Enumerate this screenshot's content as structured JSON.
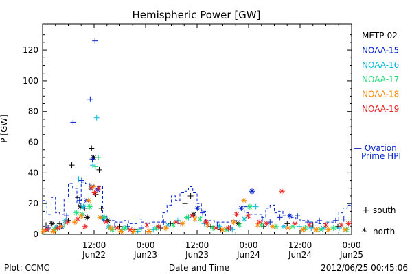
{
  "chart_data": {
    "type": "scatter",
    "title": "Hemispheric Power [GW]",
    "ylabel": "P [GW]",
    "xlabel": "Date and Time",
    "ylim": [
      0,
      137
    ],
    "yticks": [
      0,
      20,
      40,
      60,
      80,
      100,
      120
    ],
    "xlim": [
      -24.0,
      48.0
    ],
    "xticks": [
      {
        "t": -12,
        "l1": "12:00",
        "l2": "Jun22"
      },
      {
        "t": 0,
        "l1": "0:00",
        "l2": "Jun23"
      },
      {
        "t": 12,
        "l1": "12:00",
        "l2": "Jun23"
      },
      {
        "t": 24,
        "l1": "0:00",
        "l2": "Jun24"
      },
      {
        "t": 36,
        "l1": "12:00",
        "l2": "Jun24"
      },
      {
        "t": 48,
        "l1": "0:00",
        "l2": "Jun25"
      }
    ],
    "series": [
      {
        "name": "METP-02",
        "color": "#000000",
        "points": [
          [
            -23.2,
            6,
            "+"
          ],
          [
            -21.8,
            7,
            "*"
          ],
          [
            -20.0,
            7,
            "+"
          ],
          [
            -18.0,
            9,
            "+"
          ],
          [
            -17.2,
            45,
            "+"
          ],
          [
            -15.8,
            24,
            "+"
          ],
          [
            -15.2,
            18,
            "*"
          ],
          [
            -14.2,
            17,
            "+"
          ],
          [
            -13.6,
            11,
            "*"
          ],
          [
            -12.6,
            56,
            "+"
          ],
          [
            -12.1,
            50,
            "*"
          ],
          [
            -11.6,
            26,
            "+"
          ],
          [
            -10.8,
            42,
            "+"
          ],
          [
            -10.3,
            17,
            "+"
          ],
          [
            -8.8,
            9,
            "*"
          ],
          [
            -6.0,
            5,
            "+"
          ],
          [
            -2.5,
            3,
            "+"
          ],
          [
            3.5,
            4,
            "+"
          ],
          [
            5.8,
            7,
            "+"
          ],
          [
            9.2,
            20,
            "+"
          ],
          [
            10.5,
            25,
            "+"
          ],
          [
            11.2,
            13,
            "*"
          ],
          [
            15.2,
            5,
            "+"
          ],
          [
            17.5,
            3,
            "+"
          ],
          [
            21.6,
            7,
            "*"
          ],
          [
            27.5,
            5,
            "+"
          ],
          [
            33.0,
            7,
            "+"
          ],
          [
            39.0,
            6,
            "+"
          ],
          [
            44.8,
            5,
            "+"
          ]
        ]
      },
      {
        "name": "NOAA-15",
        "color": "#0022cc",
        "points": [
          [
            -22.7,
            4,
            "+"
          ],
          [
            -19.6,
            5,
            "*"
          ],
          [
            -18.4,
            12,
            "+"
          ],
          [
            -16.9,
            73,
            "+"
          ],
          [
            -15.4,
            22,
            "+"
          ],
          [
            -14.9,
            35,
            "+"
          ],
          [
            -13.7,
            22,
            "*"
          ],
          [
            -12.9,
            88,
            "+"
          ],
          [
            -12.4,
            49,
            "+"
          ],
          [
            -11.8,
            126,
            "+"
          ],
          [
            -11.2,
            29,
            "*"
          ],
          [
            -9.8,
            10,
            "*"
          ],
          [
            -7.2,
            6,
            "+"
          ],
          [
            -4.2,
            5,
            "+"
          ],
          [
            -1.0,
            4,
            "+"
          ],
          [
            4.2,
            8,
            "+"
          ],
          [
            8.2,
            7,
            "+"
          ],
          [
            12.1,
            17,
            "*"
          ],
          [
            13.3,
            14,
            "+"
          ],
          [
            16.7,
            6,
            "+"
          ],
          [
            19.8,
            4,
            "+"
          ],
          [
            22.3,
            17,
            "*"
          ],
          [
            23.6,
            18,
            "+"
          ],
          [
            24.8,
            28,
            "*"
          ],
          [
            27.2,
            10,
            "+"
          ],
          [
            29.0,
            8,
            "+"
          ],
          [
            31.3,
            11,
            "+"
          ],
          [
            33.6,
            12,
            "*"
          ],
          [
            35.4,
            12,
            "+"
          ],
          [
            37.8,
            8,
            "+"
          ],
          [
            40.5,
            9,
            "+"
          ],
          [
            44.3,
            9,
            "+"
          ],
          [
            46.2,
            10,
            "+"
          ]
        ]
      },
      {
        "name": "NOAA-16",
        "color": "#00bbdd",
        "points": [
          [
            -22.9,
            3,
            "+"
          ],
          [
            -20.8,
            5,
            "*"
          ],
          [
            -18.7,
            9,
            "*"
          ],
          [
            -15.6,
            36,
            "+"
          ],
          [
            -14.5,
            18,
            "*"
          ],
          [
            -12.8,
            30,
            "*"
          ],
          [
            -12.3,
            45,
            "+"
          ],
          [
            -11.4,
            76,
            "+"
          ],
          [
            -10.2,
            11,
            "*"
          ],
          [
            -8.6,
            5,
            "*"
          ],
          [
            -5.4,
            3,
            "+"
          ],
          [
            -1.8,
            2,
            "+"
          ],
          [
            1.8,
            3,
            "+"
          ],
          [
            5.2,
            6,
            "*"
          ],
          [
            7.5,
            9,
            "+"
          ],
          [
            10.0,
            11,
            "+"
          ],
          [
            13.7,
            7,
            "+"
          ],
          [
            17.2,
            5,
            "*"
          ],
          [
            20.2,
            3,
            "+"
          ],
          [
            23.0,
            10,
            "*"
          ],
          [
            25.7,
            18,
            "+"
          ],
          [
            28.6,
            6,
            "+"
          ],
          [
            32.2,
            5,
            "*"
          ],
          [
            35.8,
            5,
            "+"
          ],
          [
            38.6,
            4,
            "+"
          ],
          [
            41.4,
            4,
            "*"
          ],
          [
            45.1,
            4,
            "+"
          ]
        ]
      },
      {
        "name": "NOAA-17",
        "color": "#22dd77",
        "points": [
          [
            -23.5,
            2,
            "+"
          ],
          [
            -21.2,
            3,
            "*"
          ],
          [
            -19.0,
            6,
            "+"
          ],
          [
            -16.1,
            14,
            "*"
          ],
          [
            -14.7,
            13,
            "*"
          ],
          [
            -13.0,
            18,
            "*"
          ],
          [
            -11.7,
            44,
            "+"
          ],
          [
            -11.0,
            50,
            "+"
          ],
          [
            -9.6,
            11,
            "*"
          ],
          [
            -7.8,
            3,
            "*"
          ],
          [
            -4.8,
            4,
            "*"
          ],
          [
            -1.5,
            3,
            "+"
          ],
          [
            2.5,
            4,
            "*"
          ],
          [
            6.5,
            6,
            "*"
          ],
          [
            9.6,
            11,
            "*"
          ],
          [
            12.7,
            10,
            "*"
          ],
          [
            15.7,
            4,
            "*"
          ],
          [
            18.9,
            3,
            "*"
          ],
          [
            21.9,
            6,
            "*"
          ],
          [
            24.3,
            18,
            "*"
          ],
          [
            27.0,
            6,
            "*"
          ],
          [
            30.4,
            5,
            "*"
          ],
          [
            34.3,
            5,
            "*"
          ],
          [
            37.2,
            4,
            "*"
          ],
          [
            40.9,
            3,
            "*"
          ],
          [
            43.8,
            4,
            "*"
          ],
          [
            46.8,
            3,
            "*"
          ]
        ]
      },
      {
        "name": "NOAA-18",
        "color": "#ff8800",
        "points": [
          [
            -23.8,
            2,
            "*"
          ],
          [
            -21.5,
            2,
            "*"
          ],
          [
            -19.8,
            5,
            "*"
          ],
          [
            -16.5,
            8,
            "*"
          ],
          [
            -15.0,
            12,
            "*"
          ],
          [
            -13.3,
            22,
            "*"
          ],
          [
            -12.2,
            31,
            "*"
          ],
          [
            -10.6,
            11,
            "*"
          ],
          [
            -8.2,
            4,
            "*"
          ],
          [
            -5.7,
            2,
            "*"
          ],
          [
            -2.8,
            2,
            "*"
          ],
          [
            0.8,
            2,
            "*"
          ],
          [
            4.8,
            4,
            "*"
          ],
          [
            8.6,
            7,
            "*"
          ],
          [
            11.5,
            10,
            "*"
          ],
          [
            14.5,
            6,
            "*"
          ],
          [
            17.9,
            3,
            "*"
          ],
          [
            20.6,
            8,
            "*"
          ],
          [
            22.9,
            22,
            "*"
          ],
          [
            26.1,
            6,
            "*"
          ],
          [
            29.6,
            5,
            "*"
          ],
          [
            33.2,
            4,
            "*"
          ],
          [
            36.7,
            3,
            "*"
          ],
          [
            39.8,
            3,
            "*"
          ],
          [
            42.6,
            3,
            "*"
          ],
          [
            46.5,
            3,
            "*"
          ]
        ]
      },
      {
        "name": "NOAA-19",
        "color": "#ee2222",
        "points": [
          [
            -23.0,
            3,
            "*"
          ],
          [
            -20.5,
            4,
            "*"
          ],
          [
            -18.2,
            8,
            "*"
          ],
          [
            -15.8,
            10,
            "*"
          ],
          [
            -14.1,
            5,
            "*"
          ],
          [
            -12.7,
            30,
            "*"
          ],
          [
            -11.9,
            27,
            "*"
          ],
          [
            -10.9,
            30,
            "*"
          ],
          [
            -9.2,
            8,
            "*"
          ],
          [
            -6.6,
            4,
            "*"
          ],
          [
            -3.6,
            3,
            "*"
          ],
          [
            0.3,
            6,
            "*"
          ],
          [
            3.0,
            5,
            "*"
          ],
          [
            7.1,
            8,
            "*"
          ],
          [
            10.8,
            12,
            "*"
          ],
          [
            14.1,
            8,
            "*"
          ],
          [
            16.4,
            4,
            "*"
          ],
          [
            19.3,
            4,
            "*"
          ],
          [
            21.2,
            13,
            "*"
          ],
          [
            23.9,
            12,
            "*"
          ],
          [
            26.6,
            8,
            "*"
          ],
          [
            28.2,
            7,
            "*"
          ],
          [
            31.8,
            28,
            "*"
          ],
          [
            34.8,
            7,
            "*"
          ],
          [
            38.2,
            6,
            "*"
          ],
          [
            42.0,
            6,
            "*"
          ],
          [
            45.6,
            6,
            "*"
          ],
          [
            47.3,
            7,
            "*"
          ]
        ]
      }
    ],
    "ovation": {
      "label_line1": "— Ovation",
      "label_line2": "Prime HPI",
      "color": "#0022cc",
      "steps": [
        [
          -24.0,
          22
        ],
        [
          -23.0,
          13
        ],
        [
          -22.0,
          24
        ],
        [
          -21.0,
          14
        ],
        [
          -20.0,
          13
        ],
        [
          -19.0,
          23
        ],
        [
          -18.0,
          33
        ],
        [
          -17.0,
          30
        ],
        [
          -16.0,
          20
        ],
        [
          -15.0,
          34
        ],
        [
          -14.0,
          33
        ],
        [
          -13.0,
          32
        ],
        [
          -12.0,
          30
        ],
        [
          -11.0,
          31
        ],
        [
          -10.0,
          12
        ],
        [
          -9.0,
          10
        ],
        [
          -8.0,
          9
        ],
        [
          -7.0,
          8
        ],
        [
          -6.0,
          8
        ],
        [
          -5.0,
          9
        ],
        [
          -4.0,
          7
        ],
        [
          -3.0,
          7
        ],
        [
          -2.0,
          10
        ],
        [
          -1.0,
          8
        ],
        [
          0.0,
          7
        ],
        [
          1.0,
          8
        ],
        [
          2.0,
          8
        ],
        [
          3.0,
          8
        ],
        [
          4.0,
          14
        ],
        [
          5.0,
          19
        ],
        [
          6.0,
          25
        ],
        [
          7.0,
          22
        ],
        [
          8.0,
          27
        ],
        [
          9.0,
          28
        ],
        [
          10.0,
          31
        ],
        [
          11.0,
          27
        ],
        [
          12.0,
          20
        ],
        [
          13.0,
          15
        ],
        [
          14.0,
          9
        ],
        [
          15.0,
          9
        ],
        [
          16.0,
          8
        ],
        [
          17.0,
          8
        ],
        [
          18.0,
          8
        ],
        [
          19.0,
          8
        ],
        [
          20.0,
          9
        ],
        [
          21.0,
          9
        ],
        [
          22.0,
          17
        ],
        [
          23.0,
          14
        ],
        [
          24.0,
          13
        ],
        [
          25.0,
          13
        ],
        [
          26.0,
          13
        ],
        [
          27.0,
          11
        ],
        [
          28.0,
          17
        ],
        [
          29.0,
          19
        ],
        [
          30.0,
          14
        ],
        [
          31.0,
          15
        ],
        [
          32.0,
          12
        ],
        [
          33.0,
          12
        ],
        [
          34.0,
          11
        ],
        [
          35.0,
          10
        ],
        [
          36.0,
          9
        ],
        [
          37.0,
          9
        ],
        [
          38.0,
          8
        ],
        [
          39.0,
          8
        ],
        [
          40.0,
          7
        ],
        [
          41.0,
          7
        ],
        [
          42.0,
          8
        ],
        [
          43.0,
          8
        ],
        [
          44.0,
          9
        ],
        [
          45.0,
          14
        ],
        [
          46.0,
          17
        ],
        [
          47.0,
          19
        ],
        [
          48.0,
          20
        ]
      ]
    },
    "marker_key": [
      {
        "symbol": "+",
        "label": "south"
      },
      {
        "symbol": "*",
        "label": "north"
      }
    ]
  },
  "footer": {
    "left": "Plot: CCMC",
    "center": "Date and Time",
    "right": "2012/06/25 00:45:06"
  }
}
